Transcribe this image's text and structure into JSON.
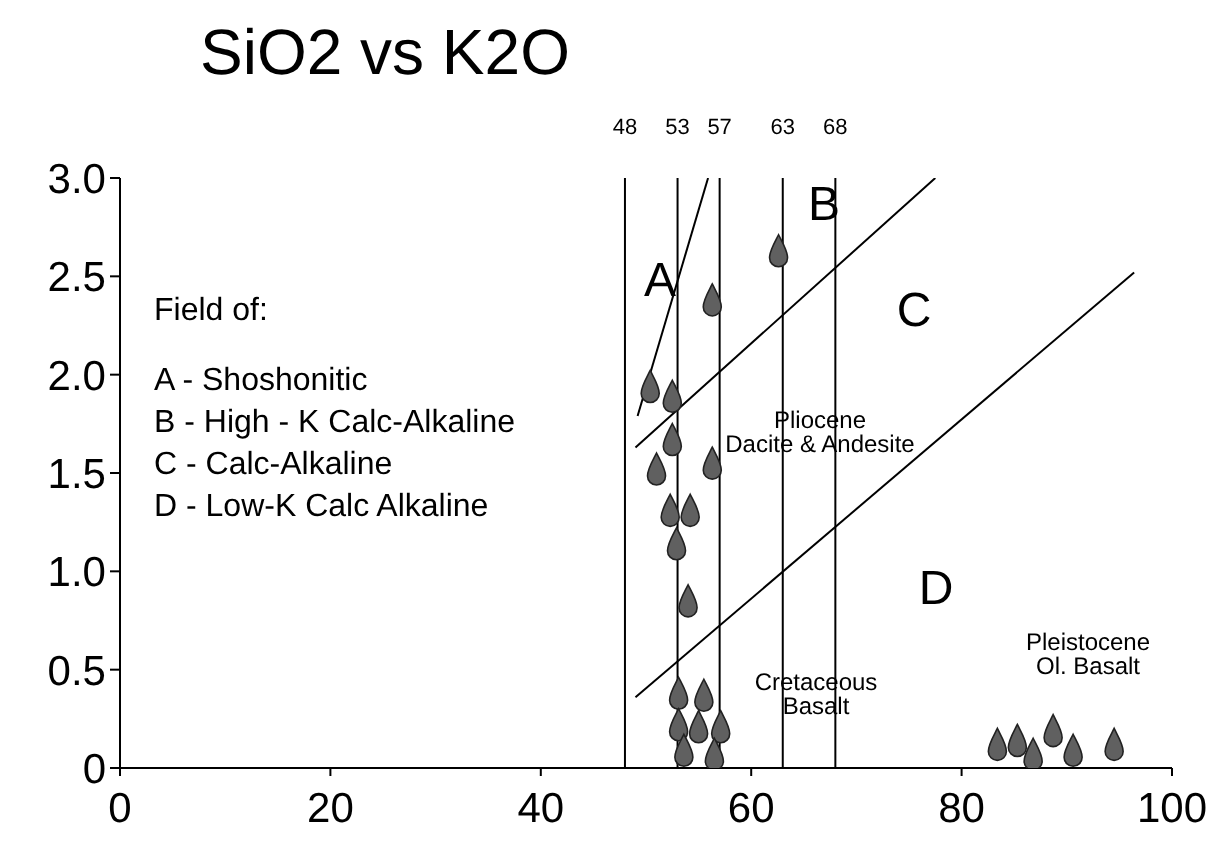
{
  "chart_data": {
    "type": "scatter",
    "title": "SiO2 vs K2O",
    "xlim": [
      0,
      100
    ],
    "xticks": [
      0,
      20,
      40,
      60,
      80,
      100
    ],
    "ylim": [
      0,
      3
    ],
    "yticks": [
      0,
      {
        "value": 0.5,
        "label": "0.5"
      },
      {
        "value": 1,
        "label": "1.0"
      },
      {
        "value": 1.5,
        "label": "1.5"
      },
      {
        "value": 2,
        "label": "2.0"
      },
      {
        "value": 2.5,
        "label": "2.5"
      },
      {
        "value": 3,
        "label": "3.0"
      }
    ],
    "series": [
      {
        "type": "line",
        "color": "#000000",
        "x": [
          49.2,
          55.9
        ],
        "values": [
          1.79,
          3.0
        ]
      },
      {
        "type": "line",
        "color": "#000000",
        "x": [
          49.0,
          77.5
        ],
        "values": [
          1.63,
          3.0
        ]
      },
      {
        "type": "line",
        "color": "#000000",
        "x": [
          49.0,
          96.4
        ],
        "values": [
          0.36,
          2.52
        ]
      },
      {
        "color": "#606060",
        "x": [
          62.6,
          56.3,
          50.4,
          52.5,
          52.5,
          51.0,
          56.3,
          52.3,
          54.2,
          52.9,
          54.0,
          53.1,
          55.5,
          53.1,
          55.0,
          57.1,
          53.6,
          56.5,
          83.4,
          85.3,
          86.8,
          88.7,
          90.6,
          94.5
        ],
        "values": [
          2.63,
          2.38,
          1.94,
          1.89,
          1.67,
          1.52,
          1.55,
          1.31,
          1.31,
          1.14,
          0.85,
          0.38,
          0.37,
          0.22,
          0.21,
          0.21,
          0.09,
          0.07,
          0.12,
          0.14,
          0.07,
          0.19,
          0.09,
          0.12
        ]
      }
    ],
    "ref_lines": [
      {
        "axis": "x",
        "value": 48,
        "label": "48",
        "color": "#000000"
      },
      {
        "axis": "x",
        "value": 53,
        "label": "53",
        "color": "#000000"
      },
      {
        "axis": "x",
        "value": 57,
        "label": "57",
        "color": "#000000"
      },
      {
        "axis": "x",
        "value": 63,
        "label": "63",
        "color": "#000000"
      },
      {
        "axis": "x",
        "value": 68,
        "label": "68",
        "color": "#000000"
      }
    ],
    "annotations": [
      "Field of:",
      "A - Shoshonitic",
      "B - High - K Calc-Alkaline",
      "C - Calc-Alkaline",
      "D - Low-K Calc Alkaline",
      "A",
      "B",
      "C",
      "D",
      "Pliocene\nDacite & Andesite",
      "Cretaceous\nBasalt",
      "Pleistocene\nOl. Basalt"
    ]
  }
}
